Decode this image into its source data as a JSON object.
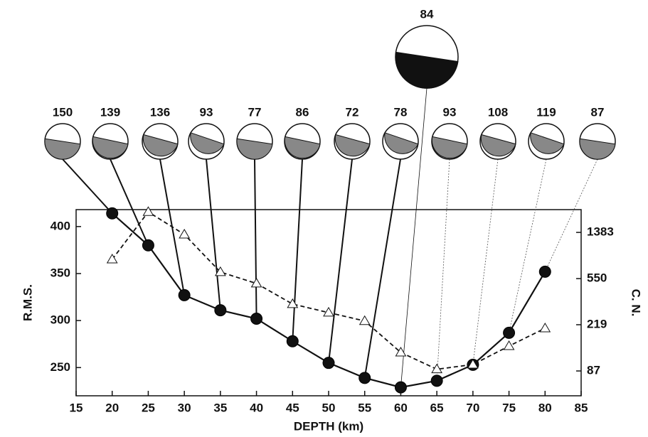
{
  "chart_data": {
    "type": "line",
    "x_label": "DEPTH (km)",
    "y_label": "R.M.S.",
    "y2_label": "C. N.",
    "x": [
      20,
      25,
      30,
      35,
      40,
      45,
      50,
      55,
      60,
      65,
      70,
      75,
      80
    ],
    "series": [
      {
        "name": "R.M.S.",
        "color": "#111111",
        "marker": "circle",
        "dash": "solid",
        "values": [
          414,
          380,
          327,
          311,
          302,
          278,
          255,
          239,
          229,
          236,
          253,
          287,
          352
        ]
      },
      {
        "name": "C. N.",
        "color": "#111111",
        "marker": "triangle",
        "dash": "dashed",
        "axis": "y2",
        "values": [
          807,
          2083,
          1328,
          627,
          499,
          331,
          279,
          236,
          126,
          90,
          99,
          143,
          204
        ]
      }
    ],
    "mechanism_labels": [
      150,
      139,
      136,
      93,
      77,
      86,
      72,
      78,
      84,
      93,
      108,
      119,
      87
    ],
    "xlim": [
      15,
      85
    ],
    "xticks": [
      15,
      20,
      25,
      30,
      35,
      40,
      45,
      50,
      55,
      60,
      65,
      70,
      75,
      80,
      85
    ],
    "ylim": [
      220,
      418
    ],
    "yticks": [
      250,
      300,
      350,
      400
    ],
    "y2lim": [
      53,
      2180
    ],
    "y2ticks": [
      87,
      219,
      550,
      1383
    ],
    "y2_log": true
  }
}
